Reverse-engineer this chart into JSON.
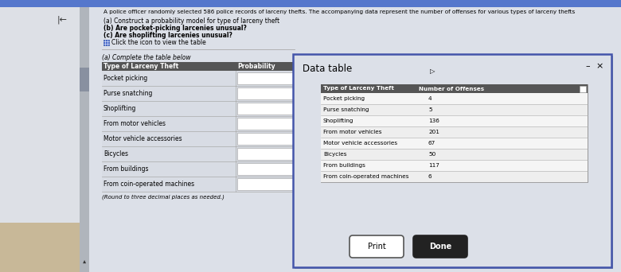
{
  "title_text": "A police officer randomly selected 586 police records of larceny thefts. The accompanying data represent the number of offenses for various types of larceny thefts",
  "question_a": "(a) Construct a probability model for type of larceny theft",
  "question_b": "(b) Are pocket-picking larcenies unusual?",
  "question_c": "(c) Are shoplifting larcenies unusual?",
  "click_text": "Click the icon to view the table",
  "left_panel_header": "(a) Complete the table below",
  "left_col1_header": "Type of Larceny Theft",
  "left_col2_header": "Probability",
  "larceny_types": [
    "Pocket picking",
    "Purse snatching",
    "Shoplifting",
    "From motor vehicles",
    "Motor vehicle accessories",
    "Bicycles",
    "From buildings",
    "From coin-operated machines"
  ],
  "data_table_title": "Data table",
  "data_col1_header": "Type of Larceny Theft",
  "data_col2_header": "Number of Offenses",
  "data_types": [
    "Pocket picking",
    "Purse snatching",
    "Shoplifting",
    "From motor vehicles",
    "Motor vehicle accessories",
    "Bicycles",
    "From buildings",
    "From coin-operated machines"
  ],
  "data_values": [
    4,
    5,
    136,
    201,
    67,
    50,
    117,
    6
  ],
  "round_note": "(Round to three decimal places as needed.)",
  "page_bg": "#c8cdd4",
  "left_area_bg": "#dde0e6",
  "scrollbar_color": "#b0b5bc",
  "left_panel_bg": "#dce0e8",
  "table_header_bg": "#555555",
  "table_header_text": "#ffffff",
  "row_line_color": "#aaaaaa",
  "input_box_color": "#ffffff",
  "dialog_bg": "#dce0e8",
  "dialog_border": "#4455aa",
  "inner_table_bg": "#f0f0f0",
  "inner_header_bg": "#555555",
  "inner_header_text": "#ffffff",
  "inner_row_line": "#aaaaaa",
  "print_btn_border": "#555555",
  "done_btn_bg": "#222222",
  "done_btn_text": "#ffffff",
  "top_bar_bg": "#5577cc",
  "arrow_icon_color": "#3355bb"
}
